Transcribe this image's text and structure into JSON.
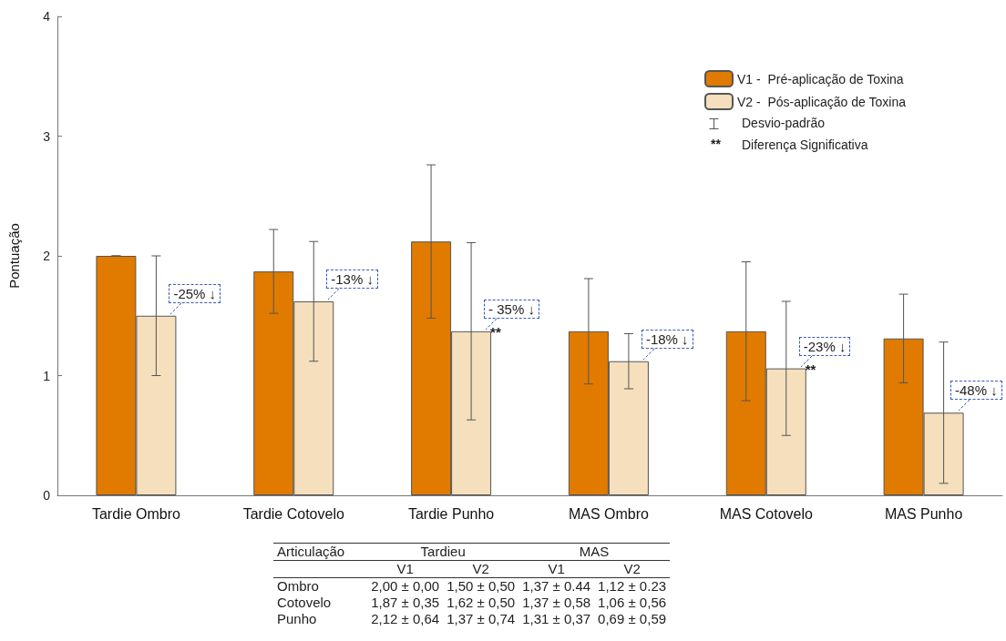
{
  "chart_data": {
    "type": "bar",
    "ylabel": "Pontuação",
    "categories": [
      "Tardie Ombro",
      "Tardie Cotovelo",
      "Tardie Punho",
      "MAS Ombro",
      "MAS Cotovelo",
      "MAS Punho"
    ],
    "series": [
      {
        "name": "V1 -  Pré-aplicação de Toxina",
        "color": "#e07b00",
        "values": [
          2.0,
          1.87,
          2.12,
          1.37,
          1.37,
          1.31
        ],
        "errors": [
          0.0,
          0.35,
          0.64,
          0.44,
          0.58,
          0.37
        ]
      },
      {
        "name": "V2 -  Pós-aplicação de Toxina",
        "color": "#f5dfbd",
        "values": [
          1.5,
          1.62,
          1.37,
          1.12,
          1.06,
          0.69
        ],
        "errors": [
          0.5,
          0.5,
          0.74,
          0.23,
          0.56,
          0.59
        ]
      }
    ],
    "ylim": [
      0,
      4
    ],
    "yticks": [
      0,
      1,
      2,
      3,
      4
    ],
    "grid": false,
    "legend": "top right",
    "annotations": [
      {
        "text": "-25% ↓",
        "x": "Tardie Ombro",
        "y": 1.5
      },
      {
        "text": "-13% ↓",
        "x": "Tardie Cotovelo",
        "y": 1.62
      },
      {
        "text": "- 35% ↓",
        "x": "Tardie Punho",
        "y": 1.37
      },
      {
        "text": "-18% ↓",
        "x": "MAS Ombro",
        "y": 1.12
      },
      {
        "text": "-23% ↓",
        "x": "MAS Cotovelo",
        "y": 1.06
      },
      {
        "text": "-48% ↓",
        "x": "MAS Punho",
        "y": 0.69
      },
      {
        "text": "**",
        "x": "Tardie Punho",
        "y": 1.37
      },
      {
        "text": "**",
        "x": "MAS Cotovelo",
        "y": 1.06
      },
      "Desvio-padrão",
      "Diferença Significativa",
      "Articulação",
      "Tardieu",
      "MAS",
      "V1",
      "V2",
      "V1",
      "V2",
      "Ombro",
      "2,00 ± 0,00",
      "1,50 ± 0,50",
      "1,37 ± 0.44",
      "1,12 ± 0.23",
      "Cotovelo",
      "1,87 ± 0,35",
      "1,62 ± 0,50",
      "1,37 ± 0,58",
      "1,06 ± 0,56",
      "Punho",
      "2,12 ± 0,64",
      "1,37 ± 0,74",
      "1,31 ± 0,37",
      "0,69 ± 0,59"
    ]
  }
}
